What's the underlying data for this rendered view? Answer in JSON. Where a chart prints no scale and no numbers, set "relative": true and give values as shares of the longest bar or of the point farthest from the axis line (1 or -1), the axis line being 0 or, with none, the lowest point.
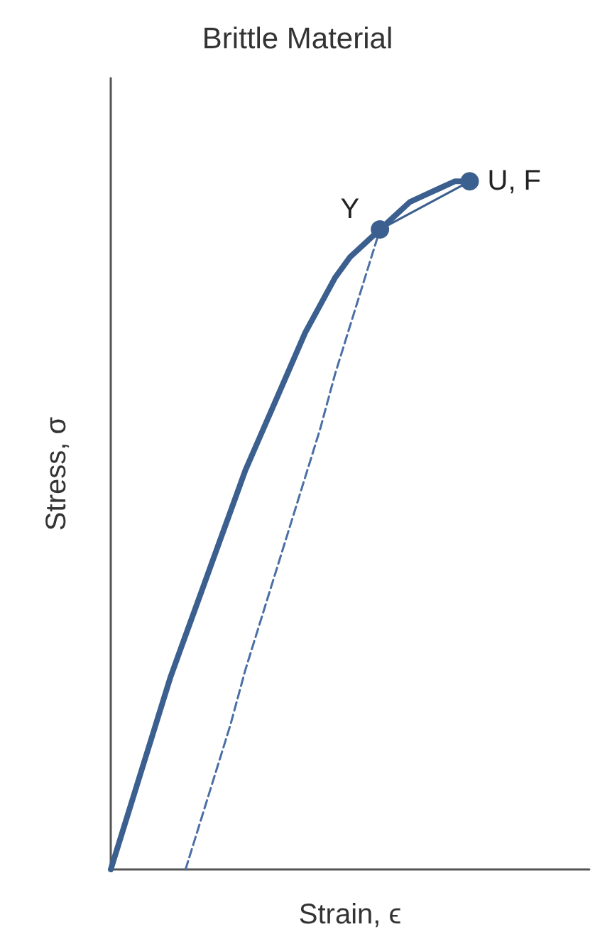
{
  "chart_data": {
    "type": "line",
    "title": "Brittle Material",
    "xlabel": "Strain, ϵ",
    "ylabel": "Stress, σ",
    "relative": true,
    "grid": false,
    "categories": [
      null,
      null,
      null,
      null,
      null,
      null,
      null,
      null,
      null,
      null,
      null,
      null,
      null,
      null,
      null,
      null,
      null,
      null,
      null,
      null,
      null,
      null,
      null,
      null,
      null,
      null,
      null,
      null,
      null,
      null,
      null,
      null,
      null
    ],
    "series": [
      {
        "color": "#3b5f8e",
        "line_style": "solid",
        "marker": "none",
        "values": [
          0,
          0.07,
          0.14,
          0.21,
          0.28,
          0.34,
          0.4,
          0.46,
          0.52,
          0.58,
          0.63,
          0.68,
          0.73,
          0.78,
          0.82,
          0.86,
          0.89,
          0.91,
          0.93,
          0.95,
          0.97,
          0.98,
          0.99,
          1,
          1,
          null,
          null,
          null,
          null,
          null,
          null,
          null,
          null
        ]
      },
      {
        "color": "#4a6fa5",
        "line_style": "dashed",
        "marker": "none",
        "values": [
          null,
          null,
          null,
          null,
          null,
          0,
          0.07,
          0.14,
          0.21,
          0.29,
          0.36,
          0.43,
          0.5,
          0.57,
          0.64,
          0.72,
          0.79,
          0.86,
          0.93,
          null,
          null,
          null,
          null,
          null,
          null,
          null,
          null,
          null,
          null,
          null,
          null,
          null,
          null
        ]
      },
      {
        "color": "#3b5f8e",
        "line_style": "solid",
        "values": [
          null,
          null,
          null,
          null,
          null,
          null,
          null,
          null,
          null,
          null,
          null,
          null,
          null,
          null,
          null,
          null,
          null,
          null,
          0.93,
          null,
          null,
          null,
          null,
          null,
          1,
          null,
          null,
          null,
          null,
          null,
          null,
          null,
          null
        ]
      }
    ],
    "annotations": [
      "Y",
      "U, F"
    ]
  }
}
